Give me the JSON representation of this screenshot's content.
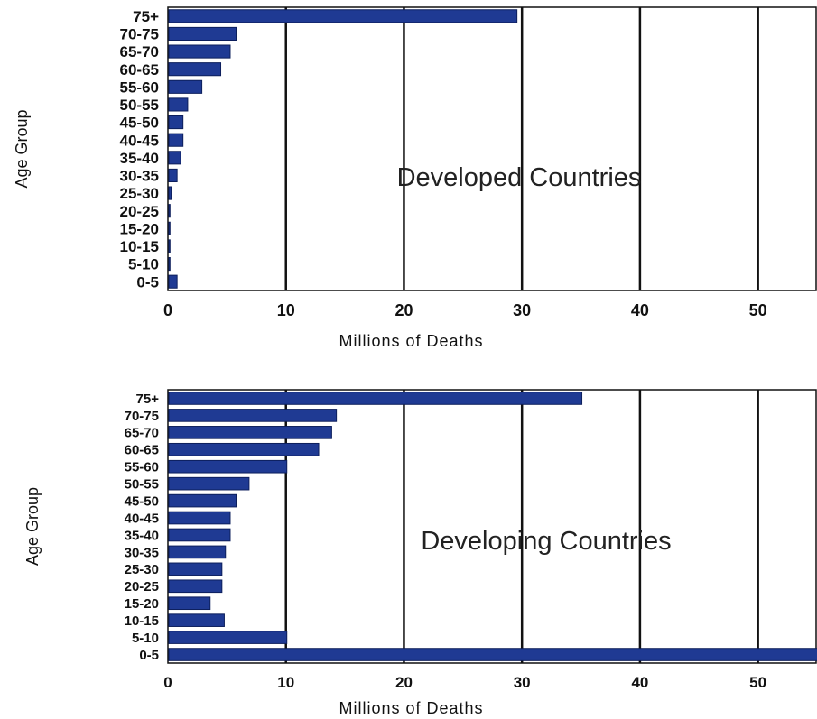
{
  "bar_color": "#1f3a93",
  "grid_color": "#111111",
  "chart_data": [
    {
      "type": "bar",
      "orientation": "horizontal",
      "annotation": "Developed Countries",
      "xlabel": "Millions of Deaths",
      "ylabel": "Age Group",
      "xlim": [
        0,
        55
      ],
      "xticks": [
        0,
        10,
        20,
        30,
        40,
        50
      ],
      "grid": true,
      "categories": [
        "75+",
        "70-75",
        "65-70",
        "60-65",
        "55-60",
        "50-55",
        "45-50",
        "40-45",
        "35-40",
        "30-35",
        "25-30",
        "20-25",
        "15-20",
        "10-15",
        "5-10",
        "0-5"
      ],
      "values": [
        29.5,
        5.7,
        5.2,
        4.4,
        2.8,
        1.6,
        1.2,
        1.2,
        1.0,
        0.7,
        0.2,
        0.1,
        0.1,
        0.1,
        0.1,
        0.7
      ]
    },
    {
      "type": "bar",
      "orientation": "horizontal",
      "annotation": "Developing Countries",
      "xlabel": "Millions of Deaths",
      "ylabel": "Age Group",
      "xlim": [
        0,
        55
      ],
      "xticks": [
        0,
        10,
        20,
        30,
        40,
        50
      ],
      "grid": true,
      "categories": [
        "75+",
        "70-75",
        "65-70",
        "60-65",
        "55-60",
        "50-55",
        "45-50",
        "40-45",
        "35-40",
        "30-35",
        "25-30",
        "20-25",
        "15-20",
        "10-15",
        "5-10",
        "0-5"
      ],
      "values": [
        35.0,
        14.2,
        13.8,
        12.7,
        10.0,
        6.8,
        5.7,
        5.2,
        5.2,
        4.8,
        4.5,
        4.5,
        3.5,
        4.7,
        10.0,
        55.0
      ]
    }
  ]
}
